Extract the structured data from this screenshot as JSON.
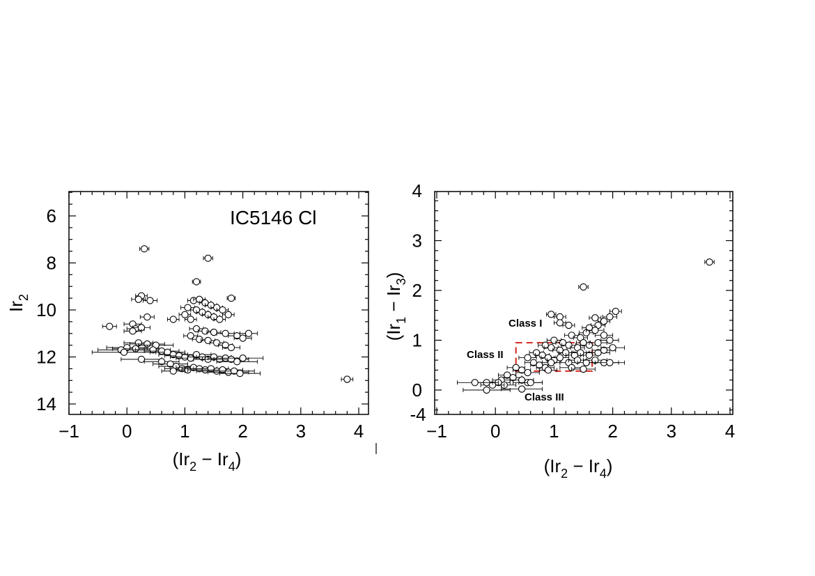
{
  "colors": {
    "axes": "#000000",
    "marker_fill": "#ffffff",
    "marker_edge": "#000000",
    "class_box": "#d8322a"
  },
  "chart_data": [
    {
      "type": "scatter",
      "title": "IC5146 Cl",
      "xlabel": "(Ir2 − Ir4)",
      "ylabel": "Ir2",
      "xlim": [
        -1,
        4.2
      ],
      "ylim": [
        14.5,
        5
      ],
      "y_inverted": true,
      "xticks": [
        "−1",
        "0",
        "1",
        "2",
        "3",
        "4"
      ],
      "yticks": [
        "6",
        "8",
        "10",
        "12",
        "14"
      ],
      "grid": false,
      "points": [
        [
          0.3,
          7.4,
          0.08
        ],
        [
          1.4,
          7.8,
          0.08
        ],
        [
          1.2,
          8.8,
          0.07
        ],
        [
          1.8,
          9.5,
          0.07
        ],
        [
          0.25,
          9.4,
          0.1
        ],
        [
          0.4,
          9.6,
          0.12
        ],
        [
          0.2,
          9.55,
          0.12
        ],
        [
          1.05,
          9.9,
          0.12
        ],
        [
          1.15,
          9.6,
          0.1
        ],
        [
          1.25,
          9.55,
          0.1
        ],
        [
          1.35,
          9.7,
          0.1
        ],
        [
          1.45,
          9.8,
          0.1
        ],
        [
          1.55,
          9.9,
          0.1
        ],
        [
          1.65,
          10.0,
          0.1
        ],
        [
          1.75,
          10.2,
          0.1
        ],
        [
          1.2,
          10.0,
          0.1
        ],
        [
          1.3,
          10.1,
          0.1
        ],
        [
          1.4,
          10.2,
          0.1
        ],
        [
          1.5,
          10.3,
          0.1
        ],
        [
          1.6,
          10.4,
          0.1
        ],
        [
          1.0,
          10.2,
          0.1
        ],
        [
          1.1,
          10.4,
          0.1
        ],
        [
          0.35,
          10.3,
          0.12
        ],
        [
          0.8,
          10.4,
          0.1
        ],
        [
          -0.3,
          10.7,
          0.12
        ],
        [
          0.1,
          10.6,
          0.15
        ],
        [
          0.15,
          10.8,
          0.15
        ],
        [
          0.25,
          10.75,
          0.15
        ],
        [
          0.1,
          10.9,
          0.15
        ],
        [
          1.2,
          10.8,
          0.12
        ],
        [
          1.35,
          10.9,
          0.12
        ],
        [
          1.5,
          10.95,
          0.12
        ],
        [
          1.7,
          11.0,
          0.15
        ],
        [
          2.1,
          11.0,
          0.15
        ],
        [
          1.9,
          11.1,
          0.15
        ],
        [
          2.0,
          11.2,
          0.15
        ],
        [
          1.1,
          11.1,
          0.12
        ],
        [
          1.25,
          11.25,
          0.12
        ],
        [
          1.4,
          11.3,
          0.12
        ],
        [
          1.55,
          11.4,
          0.12
        ],
        [
          1.7,
          11.5,
          0.12
        ],
        [
          1.8,
          11.6,
          0.15
        ],
        [
          0.2,
          11.4,
          0.25
        ],
        [
          0.35,
          11.45,
          0.3
        ],
        [
          0.5,
          11.5,
          0.3
        ],
        [
          0.0,
          11.6,
          0.35
        ],
        [
          0.15,
          11.65,
          0.4
        ],
        [
          -0.1,
          11.7,
          0.4
        ],
        [
          -0.05,
          11.8,
          0.55
        ],
        [
          0.45,
          11.7,
          0.3
        ],
        [
          0.6,
          11.75,
          0.3
        ],
        [
          0.7,
          11.8,
          0.3
        ],
        [
          0.8,
          11.9,
          0.25
        ],
        [
          0.9,
          11.95,
          0.25
        ],
        [
          1.0,
          12.0,
          0.25
        ],
        [
          1.1,
          12.05,
          0.25
        ],
        [
          1.2,
          11.9,
          0.25
        ],
        [
          1.3,
          12.0,
          0.25
        ],
        [
          1.4,
          12.1,
          0.25
        ],
        [
          1.5,
          12.0,
          0.3
        ],
        [
          1.6,
          12.1,
          0.3
        ],
        [
          1.7,
          12.05,
          0.3
        ],
        [
          1.8,
          12.1,
          0.3
        ],
        [
          1.9,
          12.2,
          0.35
        ],
        [
          2.0,
          12.05,
          0.35
        ],
        [
          0.25,
          12.1,
          0.35
        ],
        [
          0.6,
          12.2,
          0.3
        ],
        [
          0.75,
          12.3,
          0.3
        ],
        [
          0.85,
          12.4,
          0.3
        ],
        [
          0.95,
          12.5,
          0.3
        ],
        [
          1.05,
          12.55,
          0.3
        ],
        [
          1.15,
          12.45,
          0.3
        ],
        [
          1.25,
          12.5,
          0.3
        ],
        [
          1.35,
          12.55,
          0.3
        ],
        [
          1.45,
          12.5,
          0.3
        ],
        [
          1.55,
          12.6,
          0.35
        ],
        [
          1.65,
          12.55,
          0.35
        ],
        [
          1.75,
          12.65,
          0.35
        ],
        [
          1.85,
          12.6,
          0.35
        ],
        [
          1.95,
          12.7,
          0.35
        ],
        [
          0.8,
          12.6,
          0.2
        ],
        [
          3.8,
          12.95,
          0.1
        ]
      ]
    },
    {
      "type": "scatter",
      "title": "",
      "xlabel": "(Ir2 − Ir4)",
      "ylabel": "(Ir1 − Ir3)",
      "xlim": [
        -1,
        4.2
      ],
      "ylim": [
        -0.5,
        4
      ],
      "xticks": [
        "−1",
        "0",
        "1",
        "2",
        "3",
        "4"
      ],
      "yticks": [
        "0",
        "1",
        "2",
        "3",
        "4"
      ],
      "grid": false,
      "annotations": [
        "Class I",
        "Class II",
        "Class III"
      ],
      "class_ii_box": {
        "x": [
          0.35,
          1.65
        ],
        "y": [
          0.38,
          0.95
        ]
      },
      "points": [
        [
          3.65,
          2.57,
          0.08
        ],
        [
          1.5,
          2.07,
          0.08
        ],
        [
          0.95,
          1.52,
          0.08
        ],
        [
          1.1,
          1.47,
          0.1
        ],
        [
          1.1,
          1.35,
          0.1
        ],
        [
          1.25,
          1.3,
          0.1
        ],
        [
          2.05,
          1.58,
          0.1
        ],
        [
          1.95,
          1.47,
          0.12
        ],
        [
          1.7,
          1.45,
          0.1
        ],
        [
          1.85,
          1.38,
          0.1
        ],
        [
          1.75,
          1.3,
          0.12
        ],
        [
          1.6,
          1.25,
          0.12
        ],
        [
          1.3,
          1.1,
          0.12
        ],
        [
          1.45,
          1.05,
          0.12
        ],
        [
          1.55,
          1.15,
          0.12
        ],
        [
          1.7,
          1.2,
          0.15
        ],
        [
          1.85,
          1.1,
          0.15
        ],
        [
          1.95,
          1.0,
          0.15
        ],
        [
          1.0,
          1.0,
          0.12
        ],
        [
          1.15,
          0.95,
          0.12
        ],
        [
          1.25,
          0.9,
          0.12
        ],
        [
          1.4,
          0.85,
          0.12
        ],
        [
          1.5,
          0.95,
          0.12
        ],
        [
          1.6,
          0.9,
          0.15
        ],
        [
          1.75,
          0.95,
          0.15
        ],
        [
          0.85,
          0.9,
          0.12
        ],
        [
          0.95,
          0.85,
          0.12
        ],
        [
          1.1,
          0.8,
          0.12
        ],
        [
          1.2,
          0.75,
          0.12
        ],
        [
          1.35,
          0.7,
          0.15
        ],
        [
          1.45,
          0.75,
          0.15
        ],
        [
          1.6,
          0.7,
          0.15
        ],
        [
          1.75,
          0.75,
          0.2
        ],
        [
          1.85,
          0.8,
          0.2
        ],
        [
          2.0,
          0.85,
          0.2
        ],
        [
          0.7,
          0.75,
          0.12
        ],
        [
          0.8,
          0.7,
          0.12
        ],
        [
          0.9,
          0.65,
          0.12
        ],
        [
          1.0,
          0.6,
          0.12
        ],
        [
          1.1,
          0.65,
          0.15
        ],
        [
          1.25,
          0.55,
          0.15
        ],
        [
          1.4,
          0.6,
          0.15
        ],
        [
          1.55,
          0.55,
          0.15
        ],
        [
          1.7,
          0.6,
          0.2
        ],
        [
          1.85,
          0.55,
          0.25
        ],
        [
          0.55,
          0.65,
          0.15
        ],
        [
          0.65,
          0.55,
          0.15
        ],
        [
          0.75,
          0.5,
          0.15
        ],
        [
          0.85,
          0.45,
          0.15
        ],
        [
          0.95,
          0.55,
          0.15
        ],
        [
          0.9,
          0.4,
          0.15
        ],
        [
          1.3,
          0.45,
          0.2
        ],
        [
          1.5,
          0.42,
          0.2
        ],
        [
          1.95,
          0.55,
          0.25
        ],
        [
          0.35,
          0.45,
          0.15
        ],
        [
          0.45,
          0.4,
          0.15
        ],
        [
          0.55,
          0.35,
          0.2
        ],
        [
          0.2,
          0.3,
          0.15
        ],
        [
          0.3,
          0.25,
          0.15
        ],
        [
          0.45,
          0.2,
          0.2
        ],
        [
          0.55,
          0.15,
          0.25
        ],
        [
          0.1,
          0.2,
          0.15
        ],
        [
          0.05,
          0.15,
          0.2
        ],
        [
          0.15,
          0.1,
          0.2
        ],
        [
          -0.05,
          0.1,
          0.2
        ],
        [
          -0.15,
          0.15,
          0.2
        ],
        [
          -0.35,
          0.15,
          0.3
        ],
        [
          -0.15,
          0.0,
          0.4
        ],
        [
          0.45,
          0.02,
          0.35
        ],
        [
          0.6,
          0.15,
          0.2
        ]
      ]
    }
  ]
}
